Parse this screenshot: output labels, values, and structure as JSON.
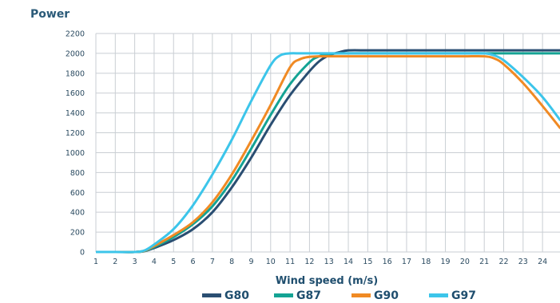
{
  "chart_data": {
    "type": "line",
    "title": "",
    "ylabel": "Power",
    "xlabel": "Wind speed (m/s)",
    "xlim": [
      1,
      24.9
    ],
    "ylim": [
      0,
      2200
    ],
    "x_ticks": [
      1,
      2,
      3,
      4,
      5,
      6,
      7,
      8,
      9,
      10,
      11,
      12,
      13,
      14,
      15,
      16,
      17,
      18,
      19,
      20,
      21,
      22,
      23,
      24
    ],
    "y_ticks": [
      0,
      200,
      400,
      600,
      800,
      1000,
      1200,
      1400,
      1600,
      1800,
      2000,
      2200
    ],
    "grid": true,
    "legend_position": "bottom",
    "series": [
      {
        "name": "G80",
        "color": "#2a4e72",
        "x": [
          1,
          2,
          3,
          3.5,
          4,
          5,
          6,
          7,
          8,
          9,
          10,
          11,
          12,
          12.5,
          13,
          13.5,
          14,
          15,
          16,
          17,
          18,
          19,
          20,
          21,
          22,
          23,
          24,
          24.9
        ],
        "y": [
          0,
          0,
          0,
          8,
          40,
          120,
          230,
          400,
          650,
          950,
          1280,
          1580,
          1820,
          1920,
          1980,
          2010,
          2030,
          2030,
          2030,
          2030,
          2030,
          2030,
          2030,
          2030,
          2030,
          2030,
          2030,
          2030
        ]
      },
      {
        "name": "G87",
        "color": "#14a394",
        "x": [
          1,
          2,
          3,
          3.5,
          4,
          5,
          6,
          7,
          8,
          9,
          10,
          11,
          12,
          12.5,
          13,
          13.5,
          14,
          15,
          16,
          17,
          18,
          19,
          20,
          21,
          22,
          23,
          24,
          24.9
        ],
        "y": [
          0,
          0,
          0,
          10,
          50,
          150,
          280,
          460,
          720,
          1040,
          1380,
          1690,
          1910,
          1970,
          1995,
          2000,
          2000,
          2000,
          2000,
          2000,
          2000,
          2000,
          2000,
          2000,
          2000,
          2000,
          2000,
          2000
        ]
      },
      {
        "name": "G90",
        "color": "#f08a24",
        "x": [
          1,
          2,
          3,
          3.5,
          4,
          5,
          6,
          7,
          8,
          9,
          10,
          11,
          11.5,
          12,
          12.5,
          13,
          14,
          15,
          16,
          17,
          18,
          19,
          20,
          21,
          21.5,
          22,
          23,
          24,
          24.9
        ],
        "y": [
          0,
          0,
          0,
          12,
          60,
          170,
          300,
          500,
          780,
          1120,
          1480,
          1860,
          1940,
          1965,
          1970,
          1970,
          1970,
          1970,
          1970,
          1970,
          1970,
          1970,
          1970,
          1970,
          1950,
          1890,
          1700,
          1470,
          1250
        ]
      },
      {
        "name": "G97",
        "color": "#3cc5ea",
        "x": [
          1,
          2,
          3,
          3.5,
          4,
          5,
          6,
          7,
          8,
          9,
          10,
          10.5,
          11,
          11.5,
          12,
          13,
          14,
          15,
          16,
          17,
          18,
          19,
          20,
          21,
          21.5,
          22,
          23,
          24,
          24.9
        ],
        "y": [
          0,
          0,
          0,
          15,
          75,
          230,
          470,
          780,
          1130,
          1520,
          1880,
          1980,
          2000,
          2000,
          2000,
          2000,
          2000,
          2000,
          2000,
          2000,
          2000,
          2000,
          2000,
          2000,
          1980,
          1930,
          1760,
          1560,
          1330
        ]
      }
    ]
  }
}
